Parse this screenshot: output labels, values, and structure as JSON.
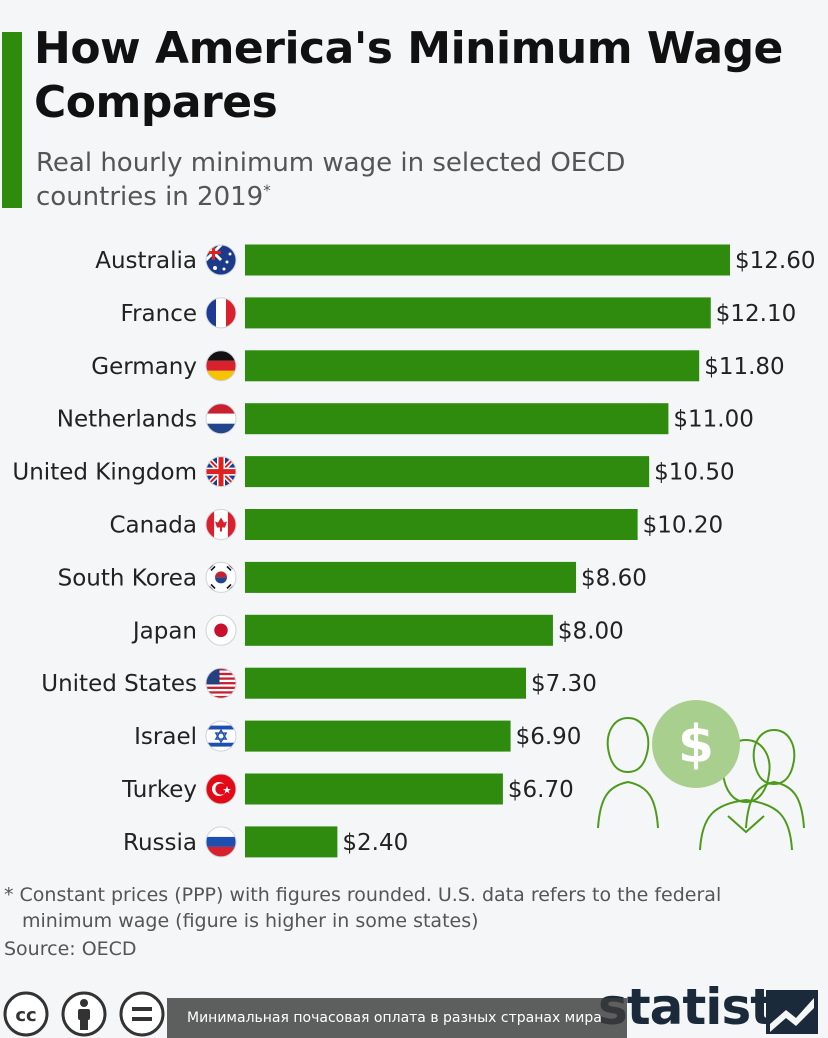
{
  "header": {
    "title": "How America's Minimum Wage Compares",
    "subtitle": "Real hourly minimum wage in selected OECD countries in 2019",
    "subtitle_mark": "*"
  },
  "colors": {
    "bar": "#2e8b0e",
    "accent": "#2e8b0e",
    "illustration": "#4e9a1a",
    "coin": "#a9cf8e"
  },
  "chart_data": {
    "type": "bar",
    "orientation": "horizontal",
    "categories": [
      "Australia",
      "France",
      "Germany",
      "Netherlands",
      "United Kingdom",
      "Canada",
      "South Korea",
      "Japan",
      "United States",
      "Israel",
      "Turkey",
      "Russia"
    ],
    "values": [
      12.6,
      12.1,
      11.8,
      11.0,
      10.5,
      10.2,
      8.6,
      8.0,
      7.3,
      6.9,
      6.7,
      2.4
    ],
    "value_labels": [
      "$12.60",
      "$12.10",
      "$11.80",
      "$11.00",
      "$10.50",
      "$10.20",
      "$8.60",
      "$8.00",
      "$7.30",
      "$6.90",
      "$6.70",
      "$2.40"
    ],
    "flag_icons": [
      "australia-flag-icon",
      "france-flag-icon",
      "germany-flag-icon",
      "netherlands-flag-icon",
      "united-kingdom-flag-icon",
      "canada-flag-icon",
      "south-korea-flag-icon",
      "japan-flag-icon",
      "united-states-flag-icon",
      "israel-flag-icon",
      "turkey-flag-icon",
      "russia-flag-icon"
    ],
    "xlim": [
      0,
      12.6
    ],
    "grid": false,
    "legend": "none"
  },
  "footnote": {
    "line1": "* Constant prices (PPP) with figures rounded. U.S. data refers to the federal",
    "line2": "minimum wage (figure is higher in some states)"
  },
  "source": "Source: OECD",
  "brand": "statista",
  "caption": "Минимальная почасовая оплата в разных странах мира",
  "illustration_symbol": "$",
  "license_icons": [
    "cc-icon",
    "attribution-icon",
    "no-derivatives-icon"
  ]
}
